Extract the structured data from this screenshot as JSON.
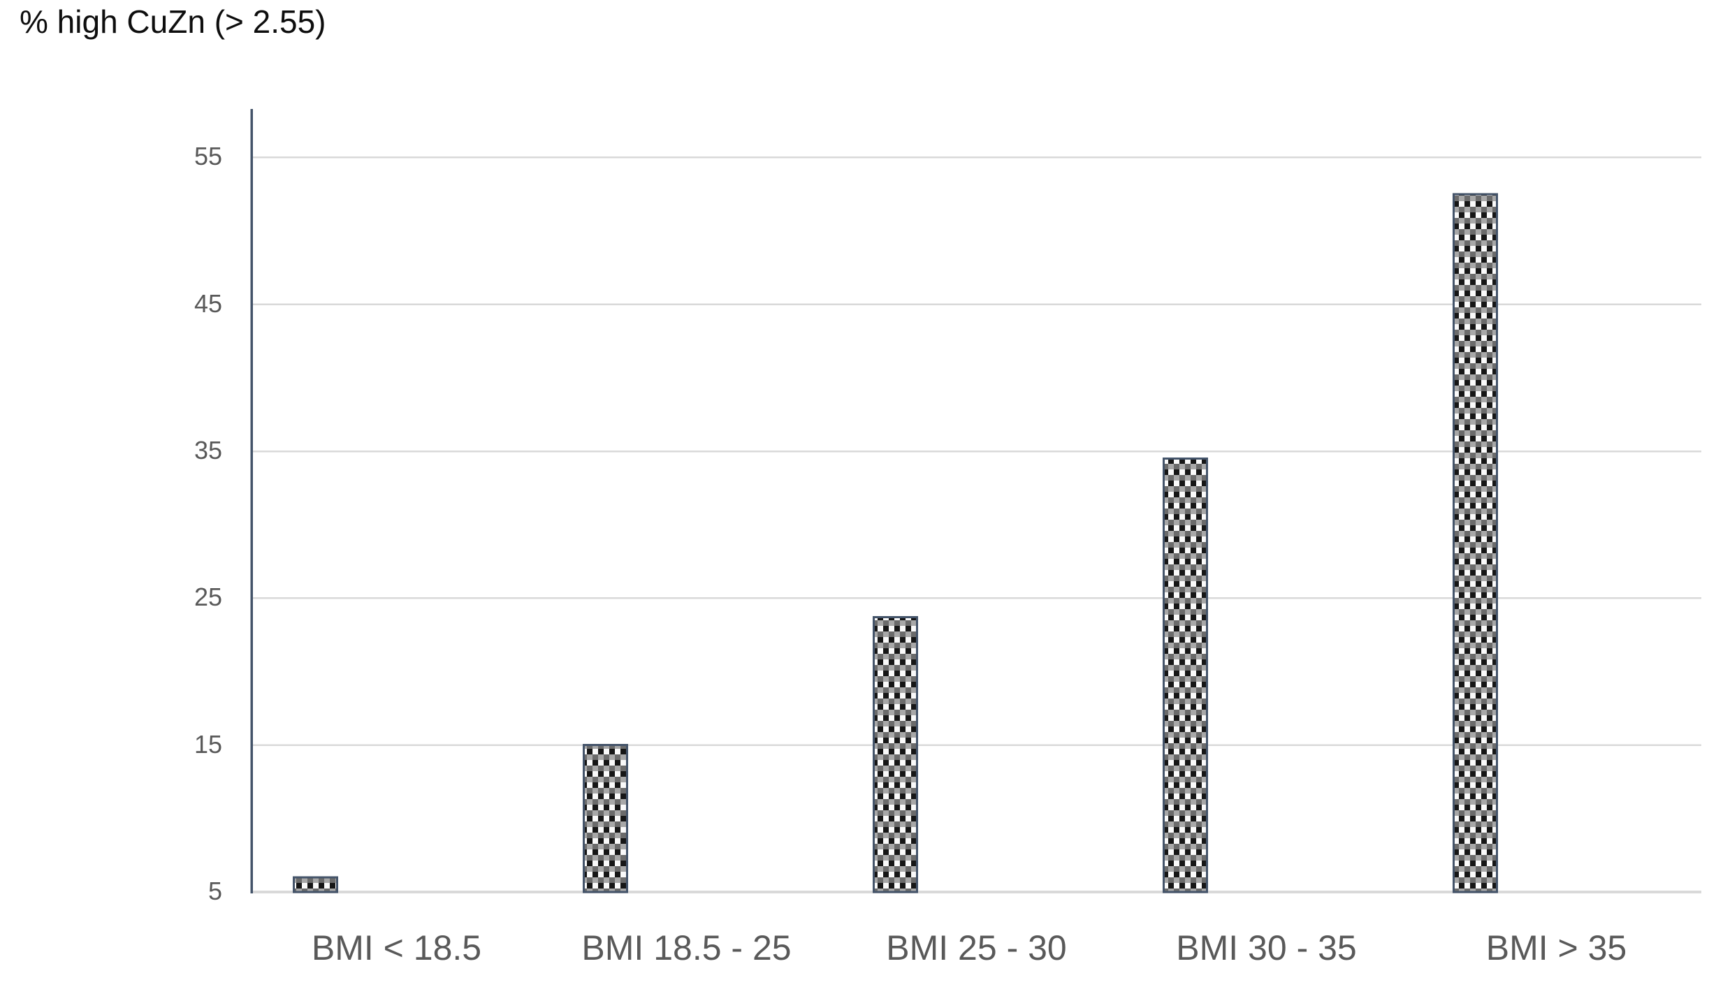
{
  "title": "% high CuZn (> 2.55)",
  "style": {
    "axis_line_color": "#44546A",
    "bar_border_color": "#44546A",
    "gridline_color": "#D9D9D9",
    "baseline_color": "#D9D9D9",
    "tick_label_color": "#595959",
    "title_color": "#0e0e0e",
    "pattern": {
      "ink": "#161616",
      "paper": "#fafafa",
      "gray_light": "#a8a8a8",
      "gray_dark": "#6b6b6b"
    }
  },
  "chart_data": {
    "type": "bar",
    "title": "% high CuZn (> 2.55)",
    "categories": [
      "BMI < 18.5",
      "BMI 18.5 - 25",
      "BMI 25 - 30",
      "BMI 30 - 35",
      "BMI > 35"
    ],
    "values": [
      6,
      15,
      23.7,
      34.5,
      52.5
    ],
    "series_name": "% high CuZn",
    "xlabel": "",
    "ylabel": "",
    "ylim": [
      5,
      58.3
    ],
    "yticks": [
      5,
      15,
      25,
      35,
      45,
      55
    ],
    "grid": true,
    "legend_position": "none",
    "bar_fill": "checkerboard-pattern",
    "notes": "single series; bars drawn left of category label centers; y axis starts at 5"
  }
}
